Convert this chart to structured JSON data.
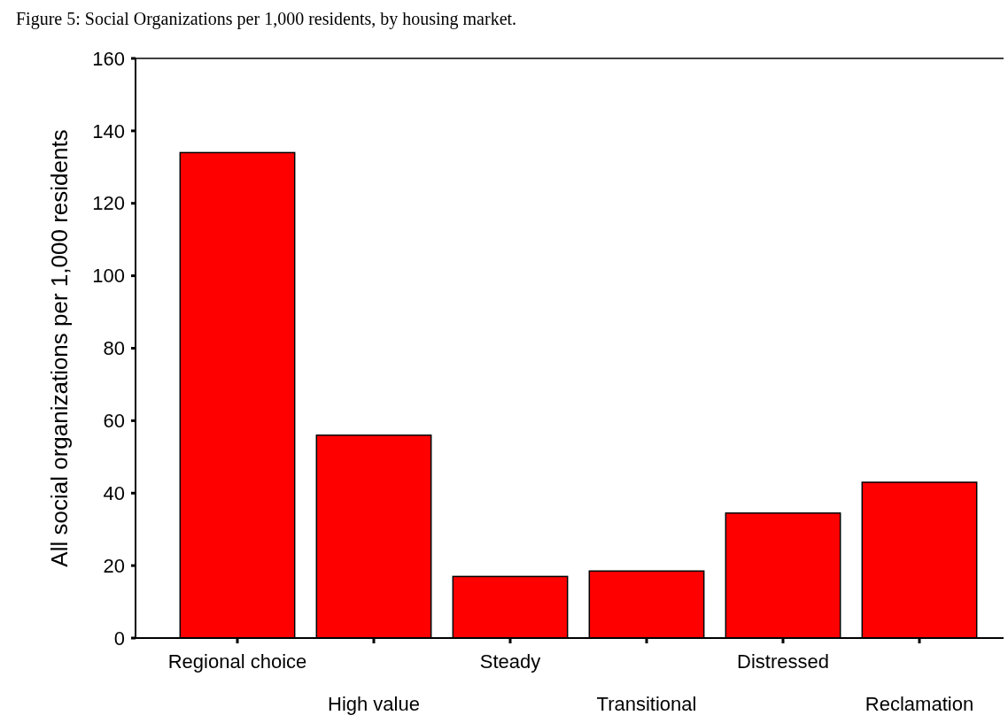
{
  "chart_data": {
    "type": "bar",
    "title": "Figure 5: Social Organizations per 1,000 residents, by housing market.",
    "ylabel": "All social organizations per 1,000 residents",
    "categories": [
      "Regional choice",
      "High value",
      "Steady",
      "Transitional",
      "Distressed",
      "Reclamation"
    ],
    "values": [
      134,
      56,
      17,
      18.5,
      34.5,
      43
    ],
    "color": "#ff0000",
    "ylim": [
      0,
      160
    ],
    "yticks": [
      0,
      20,
      40,
      60,
      80,
      100,
      120,
      140,
      160
    ],
    "grid": false
  }
}
